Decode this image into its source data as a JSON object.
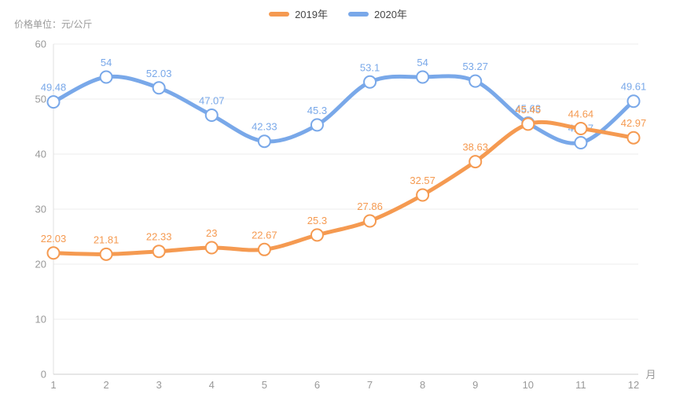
{
  "chart_data": {
    "type": "line",
    "unit_label": "价格单位：元/公斤",
    "x_axis_suffix": "月",
    "categories": [
      "1",
      "2",
      "3",
      "4",
      "5",
      "6",
      "7",
      "8",
      "9",
      "10",
      "11",
      "12"
    ],
    "y_ticks": [
      0,
      10,
      20,
      30,
      40,
      50,
      60
    ],
    "ylim": [
      0,
      60
    ],
    "grid": true,
    "legend_position": "top",
    "smooth": true,
    "series": [
      {
        "name": "2020年",
        "color": "#79a8e9",
        "values": [
          49.48,
          54,
          52.03,
          47.07,
          42.33,
          45.3,
          53.1,
          54,
          53.27,
          45.63,
          42.07,
          49.61
        ]
      },
      {
        "name": "2019年",
        "color": "#f59a51",
        "values": [
          22.03,
          21.81,
          22.33,
          23,
          22.67,
          25.3,
          27.86,
          32.57,
          38.63,
          45.45,
          44.64,
          42.97
        ]
      }
    ]
  },
  "legend": {
    "items": [
      {
        "label": "2019年",
        "color": "#f59a51"
      },
      {
        "label": "2020年",
        "color": "#79a8e9"
      }
    ]
  },
  "style": {
    "grid_color": "#ececec",
    "axis_color": "#cccccc",
    "y_axis_line_color": "#e0e0e0",
    "tick_text_color": "#999999",
    "point_fill": "#ffffff"
  }
}
